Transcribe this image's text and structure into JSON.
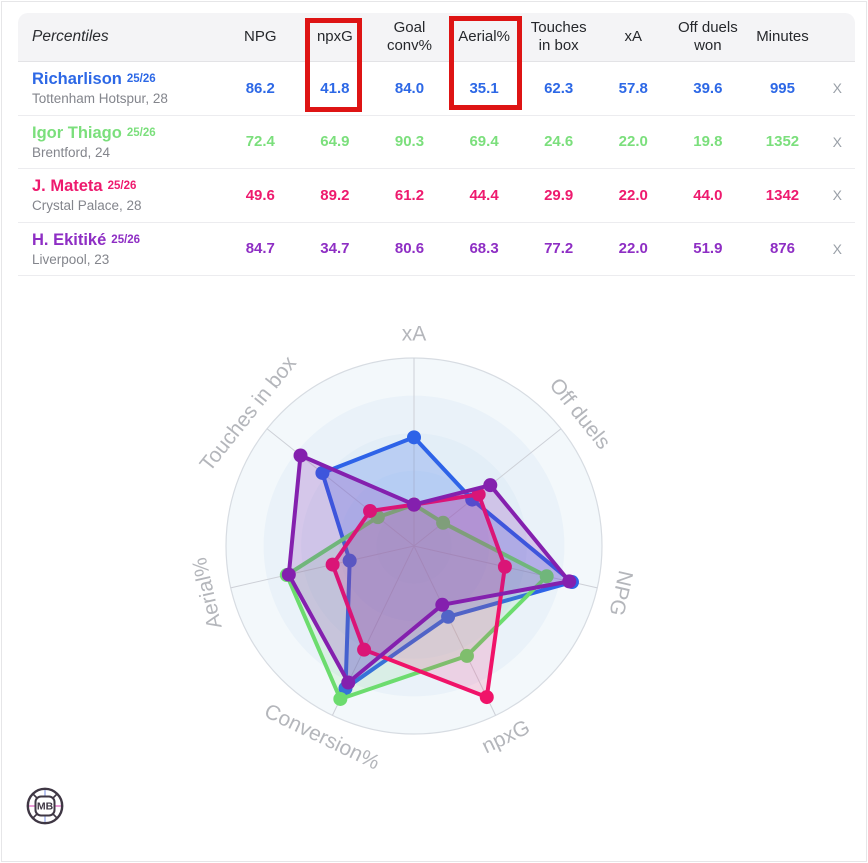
{
  "table": {
    "corner_label": "Percentiles",
    "columns": [
      "NPG",
      "npxG",
      "Goal conv%",
      "Aerial%",
      "Touches in box",
      "xA",
      "Off duels won",
      "Minutes"
    ],
    "remove_label": "X",
    "rows": [
      {
        "name": "Richarlison",
        "season": "25/26",
        "club": "Tottenham Hotspur, 28",
        "color": "#2d68e6",
        "values": [
          "86.2",
          "41.8",
          "84.0",
          "35.1",
          "62.3",
          "57.8",
          "39.6",
          "995"
        ]
      },
      {
        "name": "Igor Thiago",
        "season": "25/26",
        "club": "Brentford, 24",
        "color": "#7bdf7c",
        "values": [
          "72.4",
          "64.9",
          "90.3",
          "69.4",
          "24.6",
          "22.0",
          "19.8",
          "1352"
        ]
      },
      {
        "name": "J. Mateta",
        "season": "25/26",
        "club": "Crystal Palace, 28",
        "color": "#ee1a6e",
        "values": [
          "49.6",
          "89.2",
          "61.2",
          "44.4",
          "29.9",
          "22.0",
          "44.0",
          "1342"
        ]
      },
      {
        "name": "H. Ekitiké",
        "season": "25/26",
        "club": "Liverpool, 23",
        "color": "#8e2ec4",
        "values": [
          "84.7",
          "34.7",
          "80.6",
          "68.3",
          "77.2",
          "22.0",
          "51.9",
          "876"
        ]
      }
    ]
  },
  "annotations": {
    "color": "#de1414",
    "boxes": [
      {
        "label": "npxG column highlight"
      },
      {
        "label": "Aerial% column highlight"
      }
    ]
  },
  "chart_data": {
    "type": "radar",
    "title": "",
    "axes": [
      "xA",
      "Off duels",
      "NPG",
      "npxG",
      "Conversion%",
      "Aerial%",
      "Touches in box"
    ],
    "scale": {
      "min": 0,
      "max": 100
    },
    "rings": 5,
    "grid": "circular",
    "legend": "none",
    "label_color": "#b4b6bb",
    "series": [
      {
        "name": "Richarlison",
        "color": "#2e63e8",
        "fill_opacity": 0.22,
        "values": [
          57.8,
          39.6,
          86.2,
          41.8,
          84.0,
          35.1,
          62.3
        ]
      },
      {
        "name": "Igor Thiago",
        "color": "#6cdc6e",
        "fill_opacity": 0.13,
        "values": [
          22.0,
          19.8,
          72.4,
          64.9,
          90.3,
          69.4,
          24.6
        ]
      },
      {
        "name": "J. Mateta",
        "color": "#f01369",
        "fill_opacity": 0.15,
        "values": [
          22.0,
          44.0,
          49.6,
          89.2,
          61.2,
          44.4,
          29.9
        ]
      },
      {
        "name": "H. Ekitiké",
        "color": "#8420ae",
        "fill_opacity": 0.2,
        "values": [
          22.0,
          51.9,
          84.7,
          34.7,
          80.6,
          68.3,
          77.2
        ]
      }
    ]
  },
  "logo": {
    "text": "MB"
  }
}
